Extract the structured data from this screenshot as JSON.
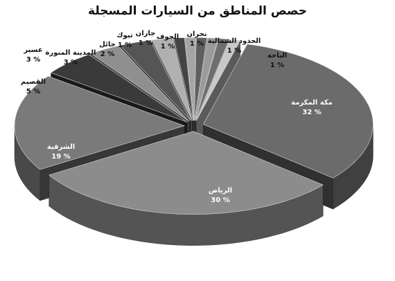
{
  "chart_data": {
    "type": "pie3d",
    "title": "حصص المناطق من السيارات المسجلة",
    "categories": [
      "مكة المكرمة",
      "الرياض",
      "الشرقية",
      "القصيم",
      "عسير",
      "المدينة المنورة",
      "حائل",
      "تبوك",
      "جازان",
      "الجوف",
      "نجران",
      "الحدود الشمالية",
      "الباحة"
    ],
    "values": [
      32,
      30,
      19,
      5,
      3,
      3,
      2,
      1,
      1,
      1,
      1,
      1,
      1
    ],
    "value_labels": [
      "32 %",
      "30 %",
      "19 %",
      "5 %",
      "3 %",
      "3 %",
      "2 %",
      "1 %",
      "1 %",
      "1 %",
      "1 %",
      "1 %",
      "1 %"
    ],
    "colors": [
      "#6b6b6b",
      "#8c8c8c",
      "#7a7a7a",
      "#3a3a3a",
      "#8f8f8f",
      "#555555",
      "#b0b0b0",
      "#444444",
      "#a5a5a5",
      "#5e5e5e",
      "#9a9a9a",
      "#6e6e6e",
      "#c8c8c8"
    ]
  }
}
